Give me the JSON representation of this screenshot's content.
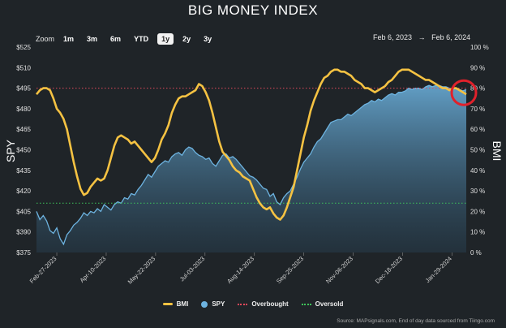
{
  "title": "BIG MONEY INDEX",
  "zoom": {
    "label": "Zoom",
    "buttons": [
      "1m",
      "3m",
      "6m",
      "YTD",
      "1y",
      "2y",
      "3y"
    ],
    "selected": "1y"
  },
  "range": {
    "from": "Feb 6, 2023",
    "arrow": "→",
    "to": "Feb 6, 2024"
  },
  "legend": [
    {
      "name": "BMI",
      "color": "#f5c242",
      "shape": "line"
    },
    {
      "name": "SPY",
      "color": "#6db3e0",
      "shape": "dot"
    },
    {
      "name": "Overbought",
      "color": "#e0485a",
      "shape": "dash"
    },
    {
      "name": "Oversold",
      "color": "#3ec25a",
      "shape": "dash"
    }
  ],
  "source": "Source: MAPsignals.com, End of day data sourced from Tiingo.com",
  "chart_data": {
    "type": "line",
    "title": "BIG MONEY INDEX",
    "ylabel_left": "SPY",
    "ylabel_right": "BMI",
    "ylim_left": [
      375,
      525
    ],
    "ylim_right": [
      0,
      100
    ],
    "yticks_left": [
      "$375",
      "$390",
      "$405",
      "$420",
      "$435",
      "$450",
      "$465",
      "$480",
      "$495",
      "$510",
      "$525"
    ],
    "yticks_right": [
      "0 %",
      "10 %",
      "20 %",
      "30 %",
      "40 %",
      "50 %",
      "60 %",
      "70 %",
      "80 %",
      "90 %",
      "100 %"
    ],
    "xticks": [
      "Feb-27-2023",
      "Apr-10-2023",
      "May-22-2023",
      "Jul-03-2023",
      "Aug-14-2023",
      "Sep-25-2023",
      "Nov-06-2023",
      "Dec-18-2023",
      "Jan-29-2024"
    ],
    "overbought": 80,
    "oversold": 24,
    "legend_position": "bottom",
    "grid": false,
    "series": [
      {
        "name": "BMI",
        "axis": "right",
        "color": "#f5c242",
        "x": [
          0,
          2,
          4,
          6,
          8,
          10,
          12,
          14,
          16,
          18,
          20,
          22,
          24,
          26,
          28,
          30,
          32,
          34,
          36,
          38,
          40,
          42,
          44,
          46,
          48,
          50,
          52,
          54,
          56,
          58,
          60,
          62,
          64,
          66,
          68,
          70,
          72,
          74,
          76,
          78,
          80,
          82,
          84,
          86,
          88,
          90,
          92,
          94,
          96,
          98,
          100,
          102,
          104,
          106,
          108,
          110,
          112,
          114,
          116,
          118,
          120,
          122,
          124,
          126,
          128,
          130,
          132,
          134,
          136,
          138,
          140,
          142,
          144,
          146,
          148,
          150,
          152,
          154,
          156,
          158,
          160,
          162,
          164,
          166,
          168,
          170,
          172,
          174,
          176,
          178,
          180,
          182,
          184,
          186,
          188,
          190,
          192,
          194,
          196,
          198,
          200,
          202,
          204,
          206,
          208,
          210,
          212,
          214,
          216,
          218,
          220,
          222,
          224,
          226,
          228,
          230,
          232,
          234,
          236,
          238,
          240,
          242,
          244,
          246,
          248,
          250,
          252,
          254
        ],
        "values": [
          77,
          79,
          80,
          80,
          79,
          75,
          70,
          68,
          65,
          60,
          52,
          44,
          37,
          31,
          28,
          29,
          32,
          34,
          36,
          35,
          36,
          40,
          46,
          52,
          56,
          57,
          56,
          55,
          53,
          54,
          52,
          50,
          48,
          46,
          44,
          46,
          50,
          55,
          58,
          62,
          68,
          72,
          75,
          76,
          76,
          77,
          78,
          79,
          82,
          81,
          78,
          74,
          68,
          61,
          54,
          49,
          47,
          45,
          42,
          40,
          39,
          37,
          36,
          35,
          31,
          27,
          24,
          22,
          21,
          22,
          19,
          17,
          16,
          18,
          22,
          27,
          32,
          40,
          48,
          56,
          62,
          69,
          74,
          78,
          82,
          85,
          86,
          88,
          89,
          89,
          88,
          88,
          87,
          86,
          84,
          83,
          82,
          80,
          80,
          79,
          78,
          79,
          80,
          81,
          83,
          84,
          86,
          88,
          89,
          89,
          89,
          88,
          87,
          86,
          85,
          84,
          84,
          83,
          82,
          81,
          80,
          80,
          79,
          80,
          80,
          79,
          78,
          77
        ]
      },
      {
        "name": "SPY",
        "axis": "left",
        "color": "#6db3e0",
        "x": [
          0,
          2,
          4,
          6,
          8,
          10,
          12,
          14,
          16,
          18,
          20,
          22,
          24,
          26,
          28,
          30,
          32,
          34,
          36,
          38,
          40,
          42,
          44,
          46,
          48,
          50,
          52,
          54,
          56,
          58,
          60,
          62,
          64,
          66,
          68,
          70,
          72,
          74,
          76,
          78,
          80,
          82,
          84,
          86,
          88,
          90,
          92,
          94,
          96,
          98,
          100,
          102,
          104,
          106,
          108,
          110,
          112,
          114,
          116,
          118,
          120,
          122,
          124,
          126,
          128,
          130,
          132,
          134,
          136,
          138,
          140,
          142,
          144,
          146,
          148,
          150,
          152,
          154,
          156,
          158,
          160,
          162,
          164,
          166,
          168,
          170,
          172,
          174,
          176,
          178,
          180,
          182,
          184,
          186,
          188,
          190,
          192,
          194,
          196,
          198,
          200,
          202,
          204,
          206,
          208,
          210,
          212,
          214,
          216,
          218,
          220,
          222,
          224,
          226,
          228,
          230,
          232,
          234,
          236,
          238,
          240,
          242,
          244,
          246,
          248,
          250,
          252,
          254
        ],
        "values": [
          405,
          399,
          402,
          398,
          391,
          389,
          393,
          385,
          381,
          388,
          391,
          395,
          397,
          400,
          404,
          402,
          405,
          404,
          407,
          405,
          410,
          408,
          406,
          410,
          412,
          411,
          415,
          414,
          418,
          417,
          421,
          424,
          428,
          432,
          430,
          434,
          438,
          440,
          442,
          441,
          445,
          447,
          448,
          446,
          450,
          452,
          451,
          448,
          446,
          445,
          443,
          444,
          440,
          438,
          442,
          446,
          447,
          444,
          445,
          443,
          440,
          437,
          434,
          431,
          430,
          428,
          425,
          422,
          421,
          416,
          418,
          412,
          410,
          415,
          418,
          420,
          425,
          430,
          436,
          441,
          444,
          447,
          452,
          456,
          458,
          462,
          466,
          470,
          471,
          472,
          472,
          474,
          476,
          475,
          477,
          479,
          481,
          483,
          484,
          486,
          485,
          487,
          486,
          488,
          490,
          491,
          490,
          492,
          492,
          493,
          495,
          494,
          495,
          495,
          494,
          496,
          497,
          496,
          497,
          497,
          496,
          496,
          495,
          494,
          495,
          494,
          493,
          494
        ]
      }
    ]
  }
}
